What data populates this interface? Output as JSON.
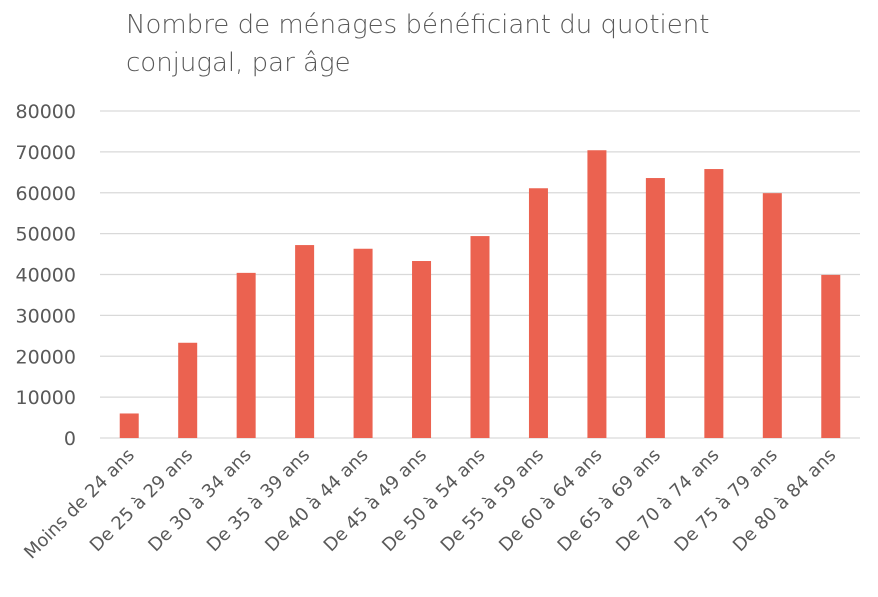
{
  "chart_data": {
    "type": "bar",
    "title": "Nombre de ménages bénéficiant du quotient conjugal, par âge",
    "xlabel": "",
    "ylabel": "",
    "ylim": [
      0,
      80000
    ],
    "yticks": [
      0,
      10000,
      20000,
      30000,
      40000,
      50000,
      60000,
      70000,
      80000
    ],
    "grid": true,
    "legend": "none",
    "bar_color": "#EB6250",
    "categories": [
      "Moins de 24 ans",
      "De 25 à 29 ans",
      "De 30 à 34 ans",
      "De 35 à 39 ans",
      "De 40 à 44 ans",
      "De 45 à 49 ans",
      "De 50 à 54 ans",
      "De 55 à 59 ans",
      "De 60 à 64 ans",
      "De 65 à 69 ans",
      "De 70 à 74 ans",
      "De 75 à 79 ans",
      "De 80 à 84 ans"
    ],
    "values": [
      6000,
      23300,
      40400,
      47200,
      46300,
      43300,
      49400,
      61100,
      70400,
      63600,
      65800,
      59900,
      39900
    ]
  }
}
